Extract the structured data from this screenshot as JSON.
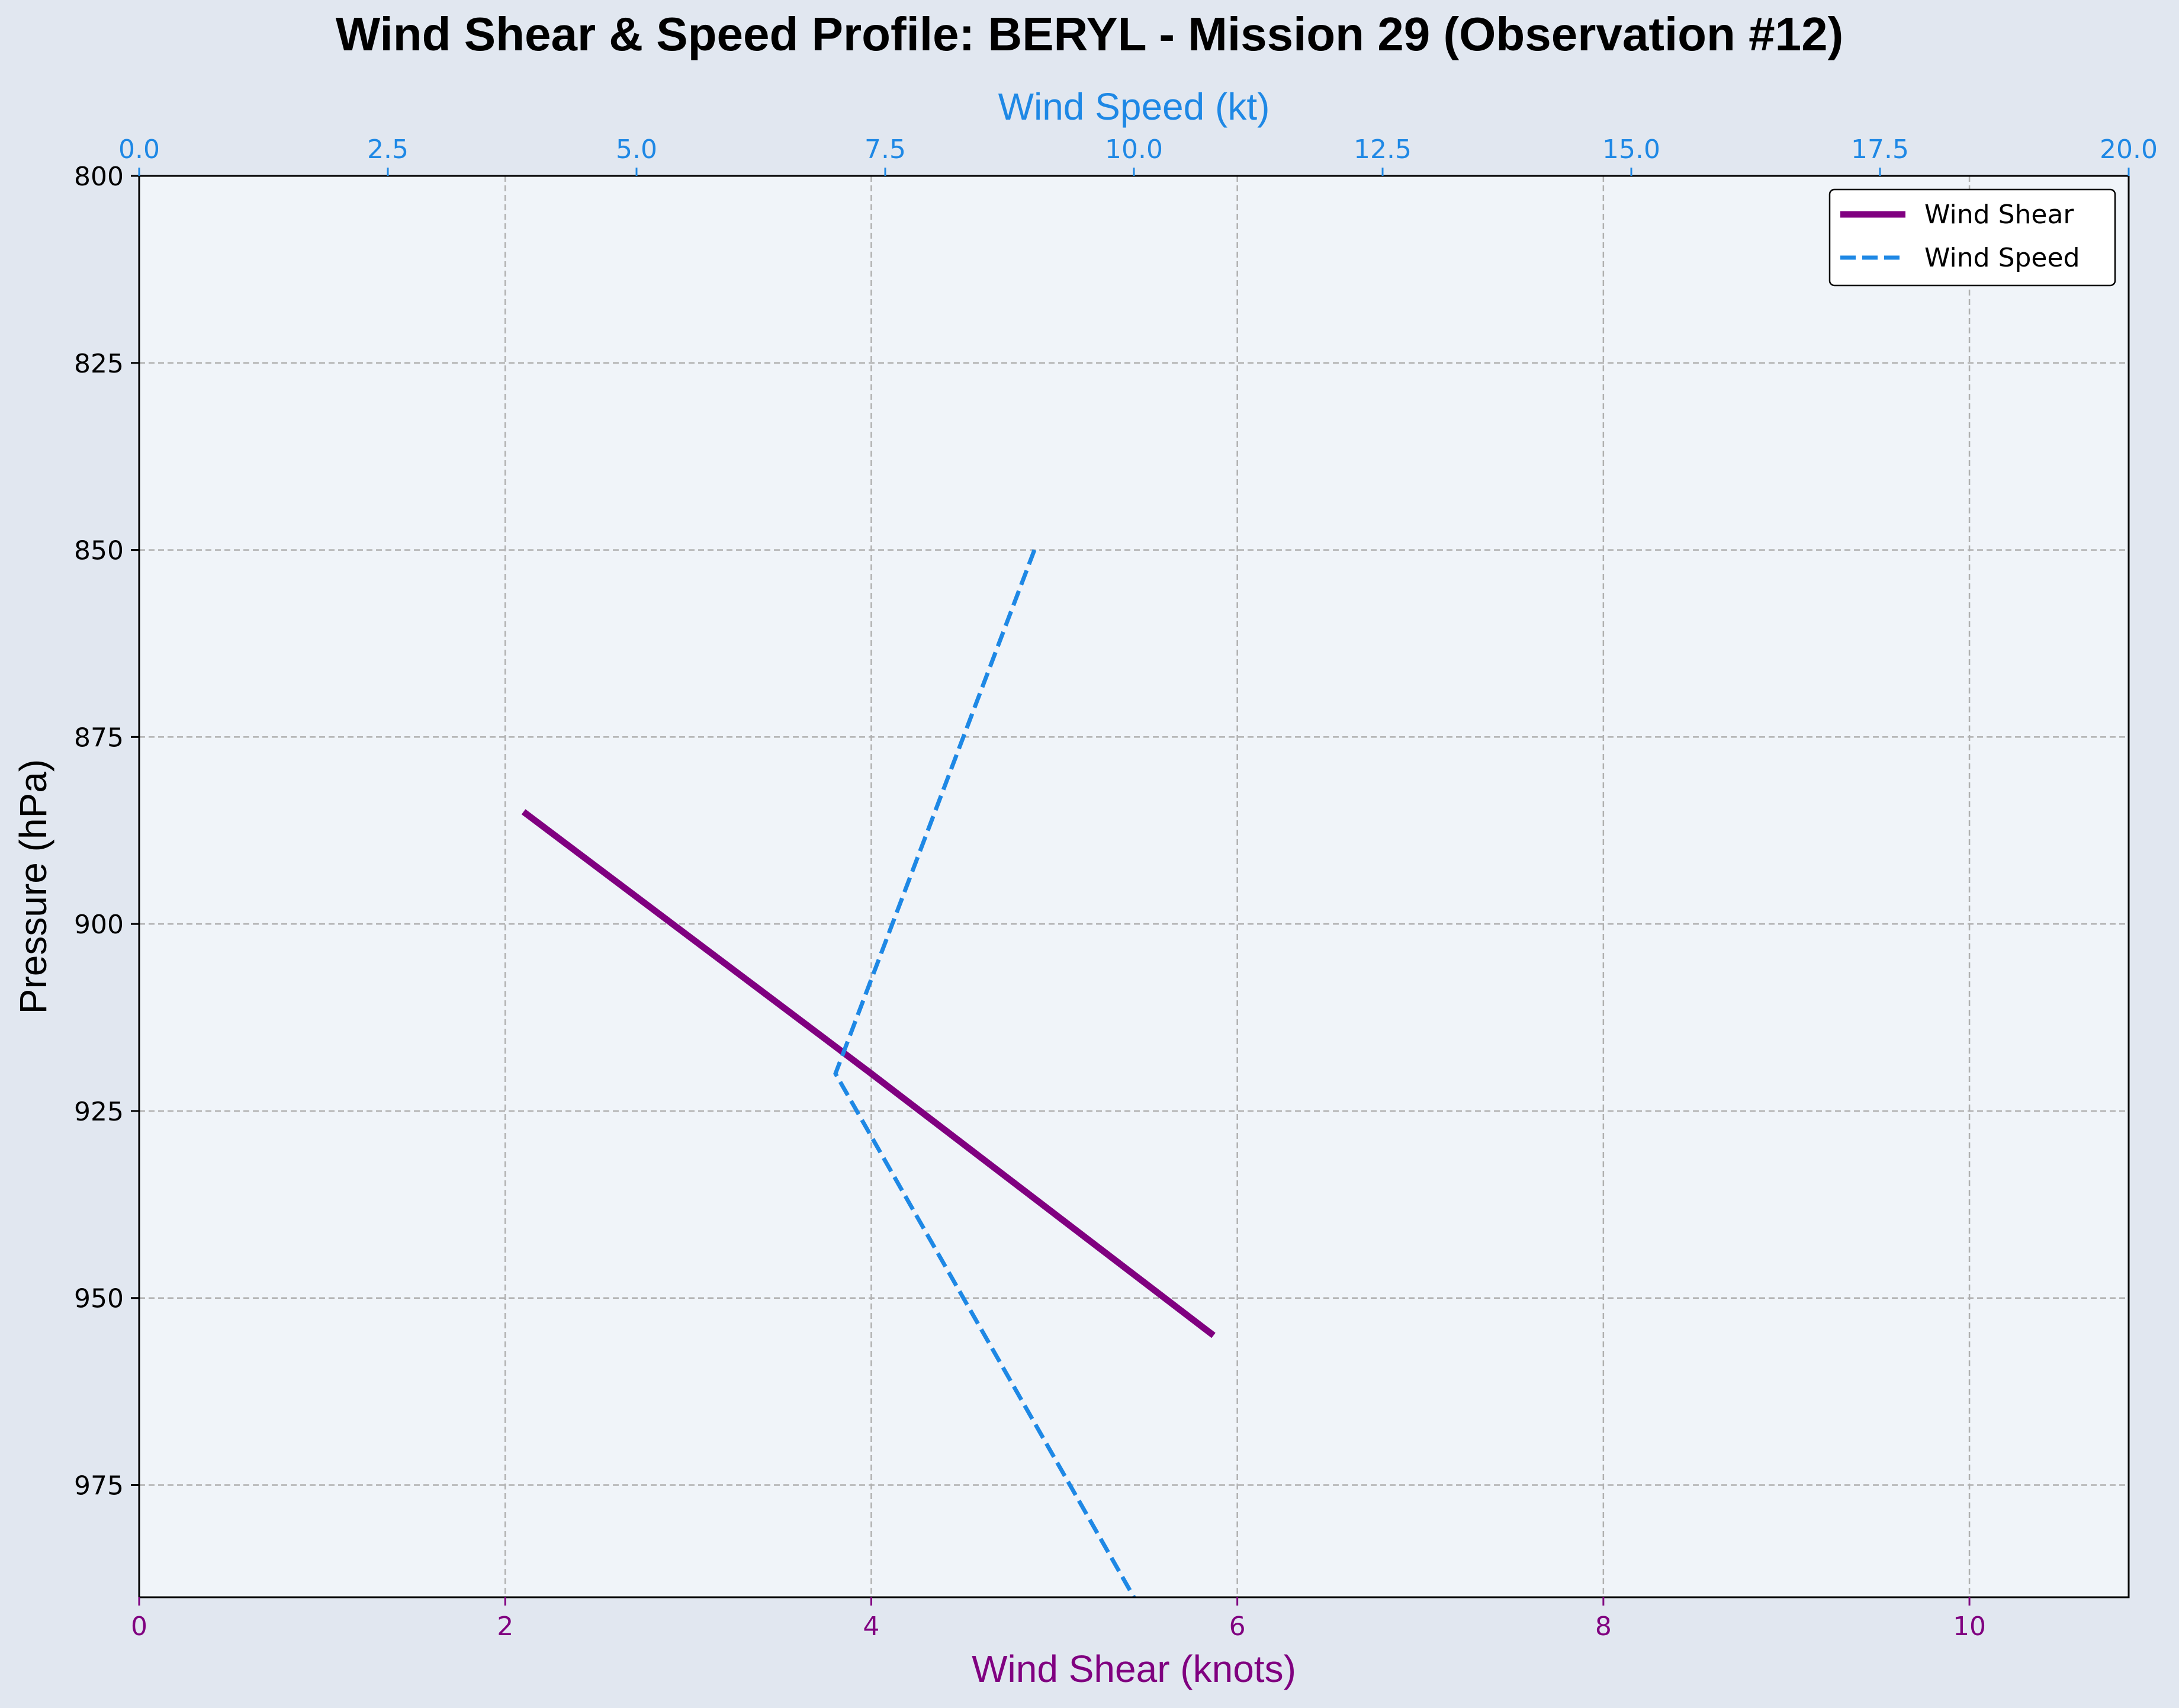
{
  "chart_data": {
    "type": "line",
    "title": "Wind Shear & Speed Profile: BERYL - Mission 29 (Observation #12)",
    "ylabel": "Pressure (hPa)",
    "y_inverted": true,
    "ylim": [
      990,
      800
    ],
    "yticks": [
      "800",
      "825",
      "850",
      "875",
      "900",
      "925",
      "950",
      "975"
    ],
    "yticks_values": [
      800,
      825,
      850,
      875,
      900,
      925,
      950,
      975
    ],
    "x_bottom": {
      "label": "Wind Shear (knots)",
      "xlim": [
        0,
        10.87
      ],
      "ticks": [
        "0",
        "2",
        "4",
        "6",
        "8",
        "10"
      ],
      "ticks_values": [
        0,
        2,
        4,
        6,
        8,
        10
      ],
      "color": "#800080"
    },
    "x_top": {
      "label": "Wind Speed (kt)",
      "xlim": [
        0,
        20
      ],
      "ticks": [
        "0.0",
        "2.5",
        "5.0",
        "7.5",
        "10.0",
        "12.5",
        "15.0",
        "17.5",
        "20.0"
      ],
      "ticks_values": [
        0,
        2.5,
        5,
        7.5,
        10,
        12.5,
        15,
        17.5,
        20
      ],
      "color": "#1e88e5"
    },
    "grid": true,
    "legend_position": "top-right",
    "series": [
      {
        "name": "Wind Shear",
        "axis": "bottom",
        "color": "#800080",
        "style": "solid",
        "points": [
          [
            2.1,
            885
          ],
          [
            4.0,
            920
          ],
          [
            5.87,
            955
          ]
        ]
      },
      {
        "name": "Wind Speed",
        "axis": "top",
        "color": "#1e88e5",
        "style": "dashed",
        "points": [
          [
            9.0,
            850
          ],
          [
            7.0,
            920
          ],
          [
            10.0,
            990
          ]
        ]
      }
    ]
  }
}
